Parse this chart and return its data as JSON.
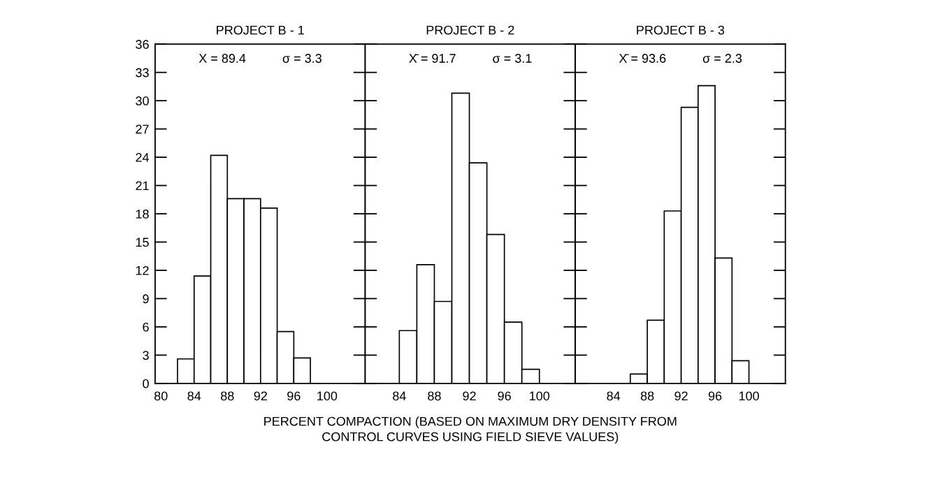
{
  "chart_data": [
    {
      "type": "histogram",
      "title": "PROJECT B - 1",
      "bins": [
        82,
        84,
        86,
        88,
        90,
        92,
        94,
        96,
        98
      ],
      "values": [
        2.6,
        11.4,
        24.2,
        19.6,
        19.6,
        18.6,
        5.5,
        2.7
      ],
      "color": "#ffffff",
      "xlim": [
        79.3,
        104.6
      ],
      "xticks": [
        80,
        84,
        88,
        92,
        96,
        100
      ],
      "ylim": [
        0,
        36
      ],
      "yticks": [
        0,
        3,
        6,
        9,
        12,
        15,
        18,
        21,
        24,
        27,
        30,
        33,
        36
      ],
      "grid": false,
      "annotations": [
        "X = 89.4",
        "σ = 3.3"
      ]
    },
    {
      "type": "histogram",
      "title": "PROJECT B - 2",
      "bins": [
        84,
        86,
        88,
        90,
        92,
        94,
        96,
        98,
        100
      ],
      "values": [
        5.6,
        12.6,
        8.7,
        30.8,
        23.4,
        15.8,
        6.5,
        1.5
      ],
      "color": "#ffffff",
      "xlim": [
        80.1,
        104.1
      ],
      "xticks": [
        84,
        88,
        92,
        96,
        100
      ],
      "ylim": [
        0,
        36
      ],
      "yticks": [
        0,
        3,
        6,
        9,
        12,
        15,
        18,
        21,
        24,
        27,
        30,
        33,
        36
      ],
      "tick_labels": "x",
      "grid": false,
      "xlabel": "PERCENT COMPACTION (BASED ON MAXIMUM DRY DENSITY FROM\nCONTROL CURVES USING FIELD SIEVE VALUES)",
      "annotations": [
        "X̄ = 91.7",
        "σ = 3.1"
      ]
    },
    {
      "type": "histogram",
      "title": "PROJECT B - 3",
      "bins": [
        86,
        88,
        90,
        92,
        94,
        96,
        98,
        100
      ],
      "values": [
        1.0,
        6.7,
        18.3,
        29.3,
        31.6,
        13.3,
        2.4
      ],
      "color": "#ffffff",
      "xlim": [
        79.5,
        104.3
      ],
      "xticks": [
        84,
        88,
        92,
        96,
        100
      ],
      "ylim": [
        0,
        36
      ],
      "yticks": [
        0,
        3,
        6,
        9,
        12,
        15,
        18,
        21,
        24,
        27,
        30,
        33,
        36
      ],
      "tick_labels": "x",
      "grid": false,
      "annotations": [
        "X̄ = 93.6",
        "σ = 2.3"
      ]
    }
  ]
}
